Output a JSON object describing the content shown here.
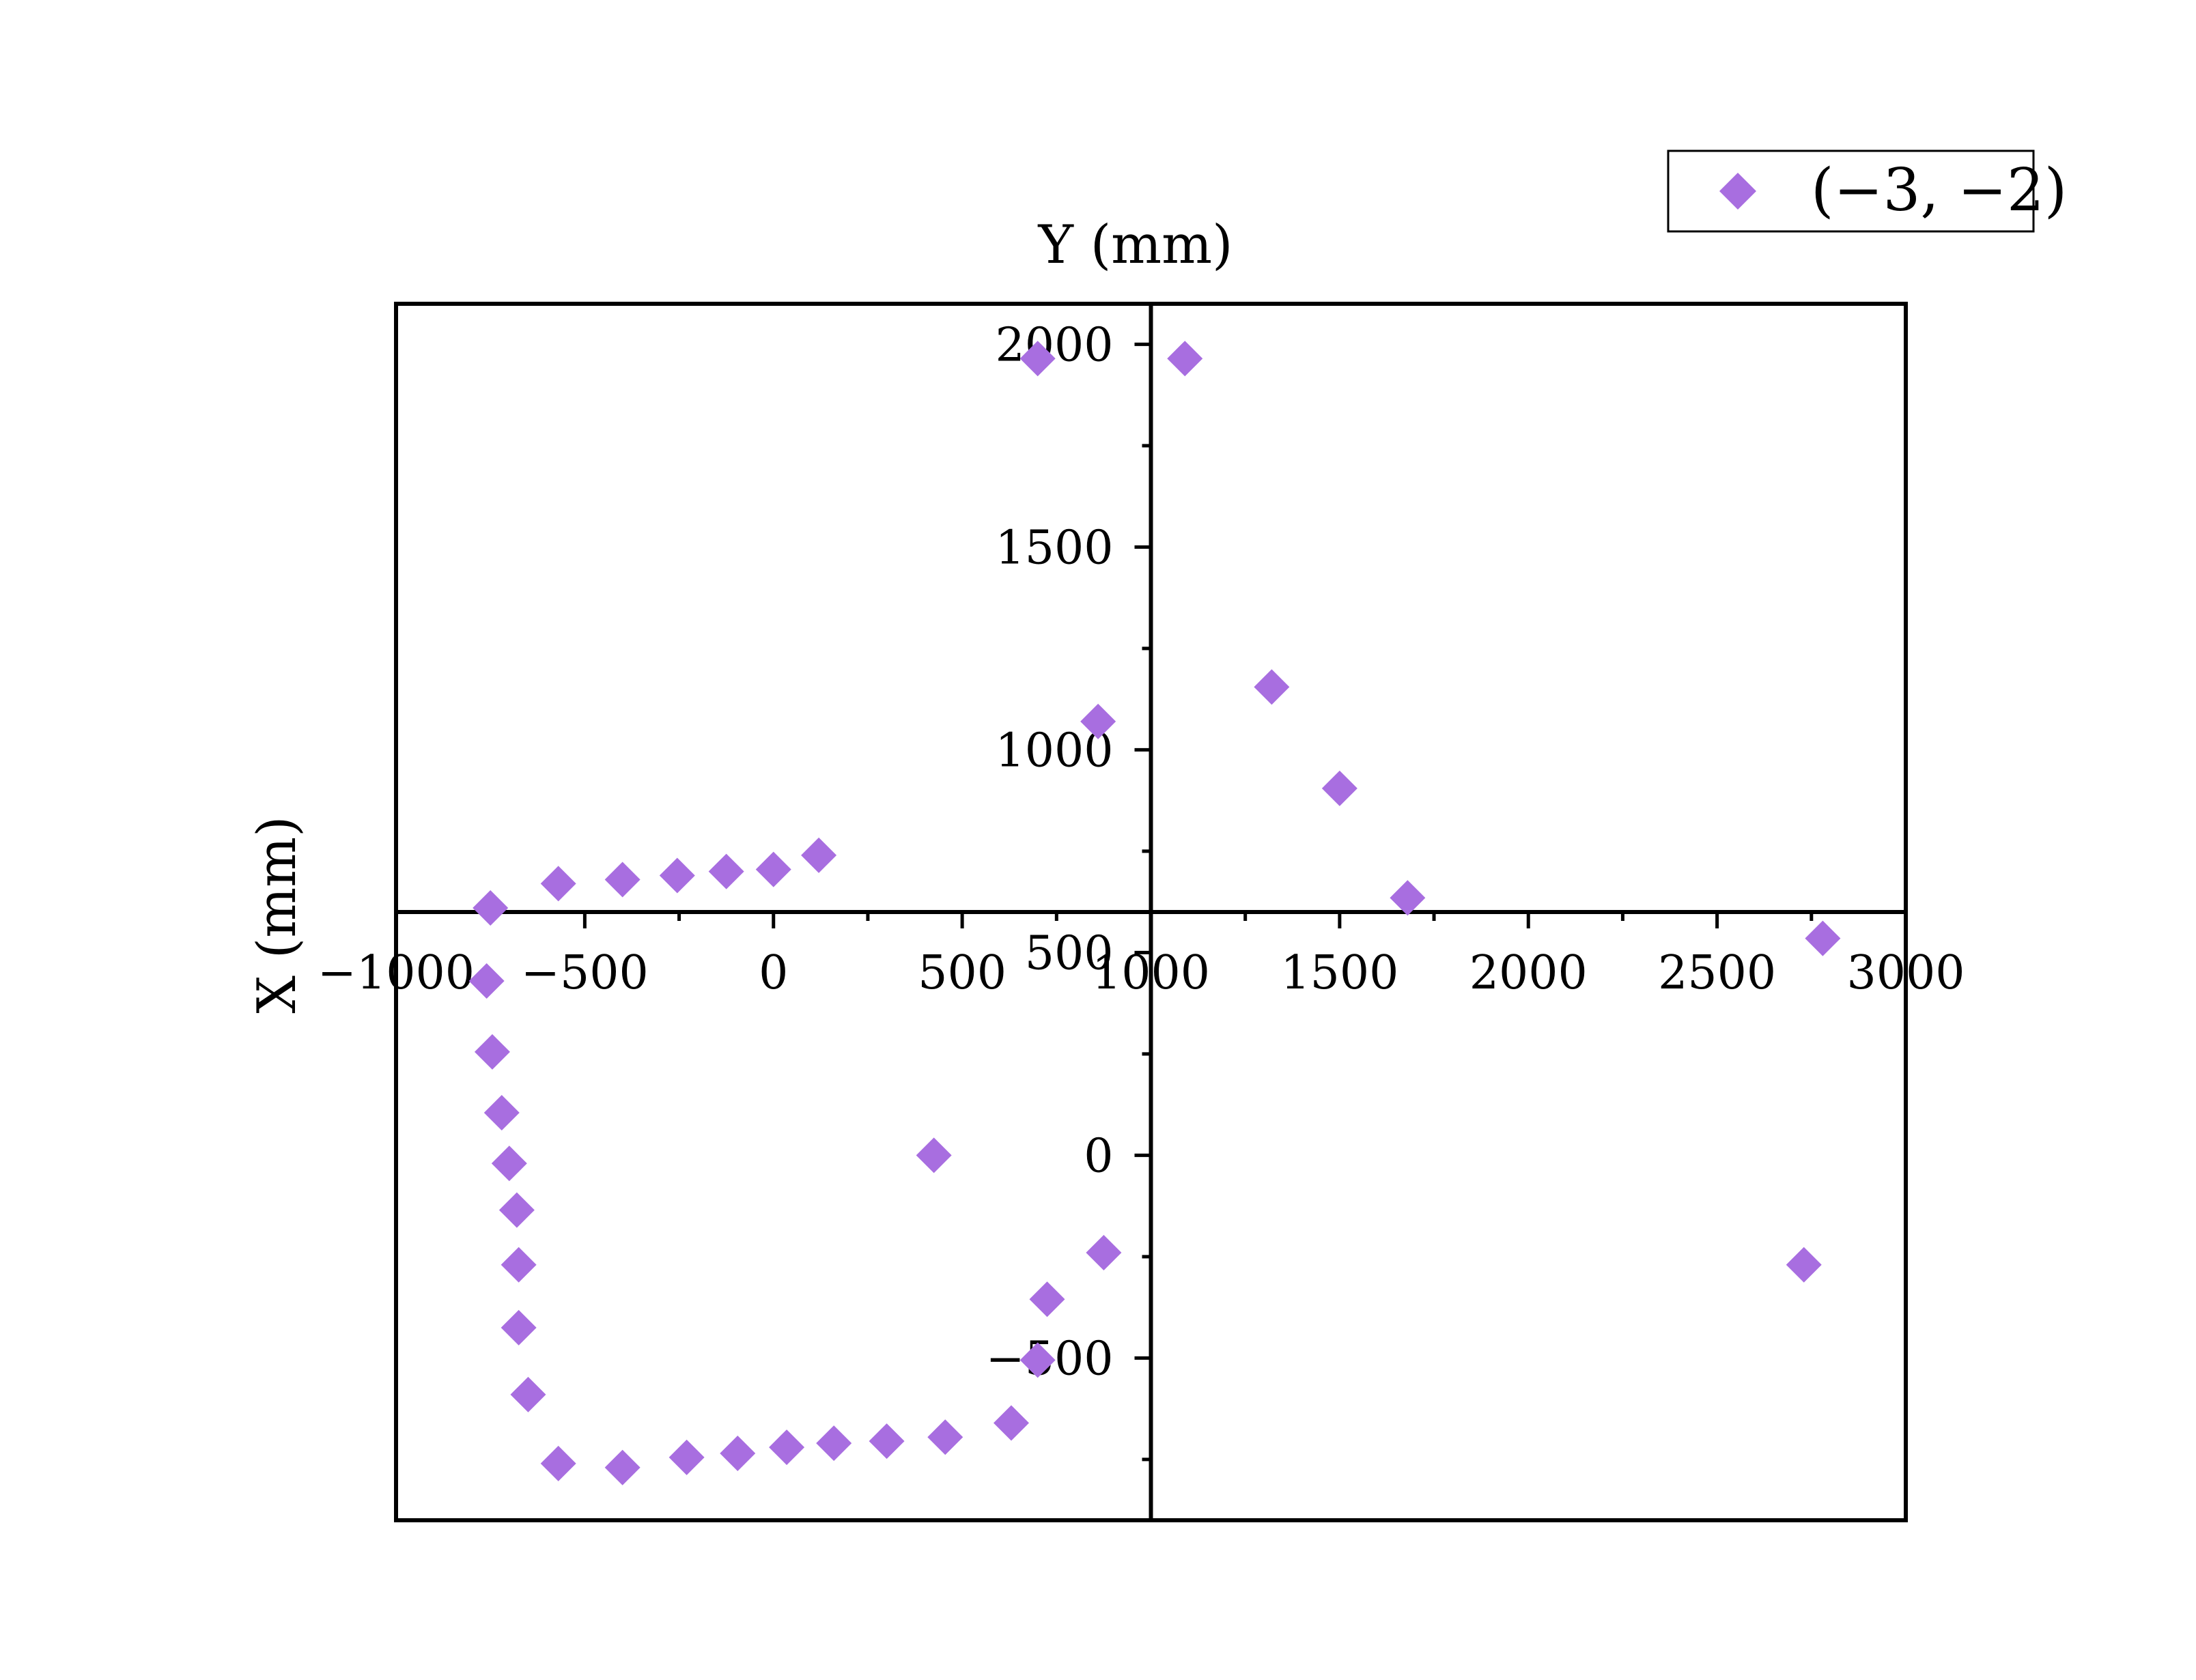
{
  "chart_data": {
    "type": "scatter",
    "xlabel": "X (mm)",
    "ylabel": "Y (mm)",
    "xlim": [
      -1000,
      3000
    ],
    "ylim": [
      -900,
      2100
    ],
    "x_ticks": [
      -1000,
      -500,
      0,
      500,
      1000,
      1500,
      2000,
      2500,
      3000
    ],
    "x_tick_labels": [
      "−1000",
      "−500",
      "0",
      "500",
      "1000",
      "1500",
      "2000",
      "2500",
      "3000"
    ],
    "y_ticks": [
      -500,
      0,
      500,
      1000,
      1500,
      2000
    ],
    "y_tick_labels": [
      "−500",
      "0",
      "500",
      "1000",
      "1500",
      "2000"
    ],
    "marker": "diamond",
    "color": "#a86ee0",
    "legend_position": "top-right",
    "series": [
      {
        "name": "(−3, −2)",
        "points": [
          {
            "x": -750,
            "y": 610
          },
          {
            "x": -760,
            "y": 430
          },
          {
            "x": -745,
            "y": 255
          },
          {
            "x": -720,
            "y": 105
          },
          {
            "x": -700,
            "y": -20
          },
          {
            "x": -680,
            "y": -135
          },
          {
            "x": -675,
            "y": -270
          },
          {
            "x": -675,
            "y": -425
          },
          {
            "x": -650,
            "y": -590
          },
          {
            "x": -570,
            "y": -760
          },
          {
            "x": -400,
            "y": -770
          },
          {
            "x": -230,
            "y": -745
          },
          {
            "x": -95,
            "y": -735
          },
          {
            "x": 35,
            "y": -720
          },
          {
            "x": 160,
            "y": -710
          },
          {
            "x": 300,
            "y": -705
          },
          {
            "x": 455,
            "y": -695
          },
          {
            "x": 630,
            "y": -660
          },
          {
            "x": 700,
            "y": -505
          },
          {
            "x": 725,
            "y": -355
          },
          {
            "x": 875,
            "y": -240
          },
          {
            "x": 425,
            "y": 0
          },
          {
            "x": 2730,
            "y": -270
          },
          {
            "x": 2780,
            "y": 535
          },
          {
            "x": 1680,
            "y": 635
          },
          {
            "x": 1500,
            "y": 905
          },
          {
            "x": 1320,
            "y": 1155
          },
          {
            "x": 1090,
            "y": 1965
          },
          {
            "x": 700,
            "y": 1965
          },
          {
            "x": 860,
            "y": 1070
          },
          {
            "x": 120,
            "y": 740
          },
          {
            "x": 0,
            "y": 705
          },
          {
            "x": -125,
            "y": 700
          },
          {
            "x": -255,
            "y": 690
          },
          {
            "x": -400,
            "y": 680
          },
          {
            "x": -570,
            "y": 670
          }
        ]
      }
    ]
  }
}
